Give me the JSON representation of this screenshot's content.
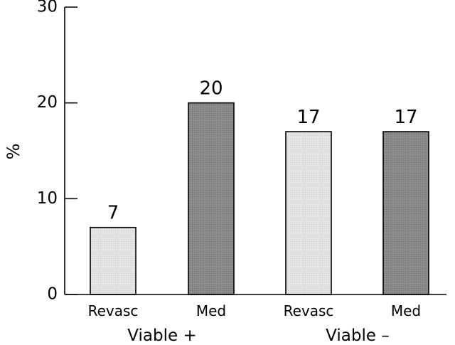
{
  "chart_data": {
    "type": "bar",
    "title": "",
    "xlabel": "",
    "ylabel": "%",
    "ylim": [
      0,
      30
    ],
    "yticks": [
      0,
      10,
      20,
      30
    ],
    "grid": false,
    "groups": [
      {
        "label": "Viable +",
        "bars": [
          {
            "category": "Revasc",
            "value": 7,
            "value_label": "7",
            "color": "#e2e2e2"
          },
          {
            "category": "Med",
            "value": 20,
            "value_label": "20",
            "color": "#8a8a8a"
          }
        ]
      },
      {
        "label": "Viable –",
        "bars": [
          {
            "category": "Revasc",
            "value": 17,
            "value_label": "17",
            "color": "#e2e2e2"
          },
          {
            "category": "Med",
            "value": 17,
            "value_label": "17",
            "color": "#8a8a8a"
          }
        ]
      }
    ]
  }
}
